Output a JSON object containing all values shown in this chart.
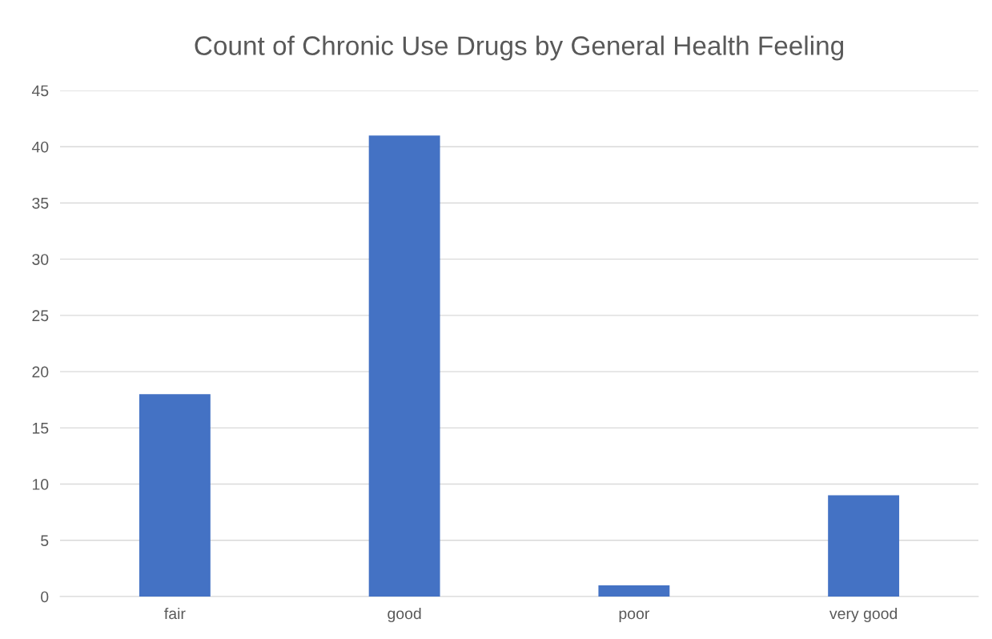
{
  "chart_data": {
    "type": "bar",
    "title": "Count of Chronic Use Drugs by General Health Feeling",
    "categories": [
      "fair",
      "good",
      "poor",
      "very good"
    ],
    "values": [
      18,
      41,
      1,
      9
    ],
    "color": "#4472c4",
    "ylim": [
      0,
      45
    ],
    "yticks": [
      0,
      5,
      10,
      15,
      20,
      25,
      30,
      35,
      40,
      45
    ],
    "grid": "y"
  }
}
